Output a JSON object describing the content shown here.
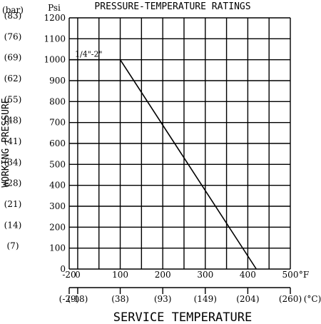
{
  "chart_data": {
    "type": "line",
    "title": "PRESSURE-TEMPERATURE RATINGS",
    "xlabel": "SERVICE TEMPERATURE",
    "ylabel": "WORKING PRESSURE",
    "x_unit": "°F",
    "x_unit_secondary": "(°C)",
    "y_unit": "Psi",
    "y_unit_secondary": "(bar)",
    "xlim": [
      -20,
      500
    ],
    "ylim": [
      0,
      1200
    ],
    "grid": true,
    "x_ticks": [
      {
        "value": -20,
        "label": "-20"
      },
      {
        "value": 0,
        "label": "0"
      },
      {
        "value": 100,
        "label": "100"
      },
      {
        "value": 200,
        "label": "200"
      },
      {
        "value": 300,
        "label": "300"
      },
      {
        "value": 400,
        "label": "400"
      },
      {
        "value": 500,
        "label": "500"
      }
    ],
    "x_ticks_secondary": [
      {
        "value": -20,
        "label": "(-29)"
      },
      {
        "value": 0,
        "label": "(-18)"
      },
      {
        "value": 100,
        "label": "(38)"
      },
      {
        "value": 200,
        "label": "(93)"
      },
      {
        "value": 300,
        "label": "(149)"
      },
      {
        "value": 400,
        "label": "(204)"
      },
      {
        "value": 500,
        "label": "(260)"
      }
    ],
    "y_ticks": [
      {
        "value": 0,
        "label": "0"
      },
      {
        "value": 100,
        "label": "100"
      },
      {
        "value": 200,
        "label": "200"
      },
      {
        "value": 300,
        "label": "300"
      },
      {
        "value": 400,
        "label": "400"
      },
      {
        "value": 500,
        "label": "500"
      },
      {
        "value": 600,
        "label": "600"
      },
      {
        "value": 700,
        "label": "700"
      },
      {
        "value": 800,
        "label": "800"
      },
      {
        "value": 900,
        "label": "900"
      },
      {
        "value": 1000,
        "label": "1000"
      },
      {
        "value": 1100,
        "label": "1100"
      },
      {
        "value": 1200,
        "label": "1200"
      }
    ],
    "y_ticks_secondary": [
      {
        "value": 100,
        "label": "(7)"
      },
      {
        "value": 200,
        "label": "(14)"
      },
      {
        "value": 300,
        "label": "(21)"
      },
      {
        "value": 400,
        "label": "(28)"
      },
      {
        "value": 500,
        "label": "(34)"
      },
      {
        "value": 600,
        "label": "(41)"
      },
      {
        "value": 700,
        "label": "(48)"
      },
      {
        "value": 800,
        "label": "(55)"
      },
      {
        "value": 900,
        "label": "(62)"
      },
      {
        "value": 1000,
        "label": "(69)"
      },
      {
        "value": 1100,
        "label": "(76)"
      },
      {
        "value": 1200,
        "label": "(83)"
      }
    ],
    "series": [
      {
        "name": "1/4\"-2\"",
        "x": [
          -20,
          100,
          420
        ],
        "y": [
          1000,
          1000,
          0
        ]
      }
    ]
  }
}
